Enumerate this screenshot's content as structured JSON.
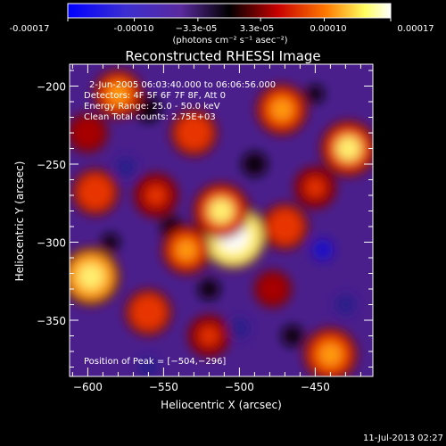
{
  "chart_data": {
    "type": "heatmap",
    "title": "Reconstructed RHESSI Image",
    "xlabel": "Heliocentric X (arcsec)",
    "ylabel": "Heliocentric Y (arcsec)",
    "xlim": [
      -612,
      -412
    ],
    "ylim": [
      -386,
      -186
    ],
    "x_ticks": [
      -600,
      -550,
      -500,
      -450
    ],
    "x_tick_labels": [
      "−600",
      "−550",
      "−500",
      "−450"
    ],
    "y_ticks": [
      -200,
      -250,
      -300,
      -350
    ],
    "y_tick_labels": [
      "−200",
      "−250",
      "−300",
      "−350"
    ],
    "colorbar": {
      "range": [
        -0.00017,
        0.00017
      ],
      "tick_labels": [
        "-0.00017",
        "-0.00010",
        "−3.3e-05",
        "3.3e-05",
        "0.00010",
        "0.00017"
      ],
      "units": "(photons cm⁻² s⁻¹ asec⁻²)",
      "colors": [
        "#0000ff",
        "#5a2a9e",
        "#000000",
        "#c80000",
        "#ff7a00",
        "#ffff80",
        "#ffffff"
      ]
    },
    "annotations": [
      "2-Jun-2005 06:03:40.000 to 06:06:56.000",
      "Detectors: 4F 5F 6F 7F 8F, Att 0",
      "Energy Range: 25.0 - 50.0 keV",
      "Clean     Total counts: 2.75E+03"
    ],
    "peak_label": "Position of Peak = [−504,−296]",
    "peak": [
      -504,
      -296
    ],
    "hotspots": [
      {
        "x": -504,
        "y": -296,
        "value": 0.00017
      },
      {
        "x": -512,
        "y": -280,
        "value": 0.00012
      },
      {
        "x": -580,
        "y": -205,
        "value": 9e-05
      },
      {
        "x": -530,
        "y": -230,
        "value": 8e-05
      },
      {
        "x": -472,
        "y": -215,
        "value": 0.0001
      },
      {
        "x": -428,
        "y": -240,
        "value": 0.00012
      },
      {
        "x": -598,
        "y": -322,
        "value": 0.00013
      },
      {
        "x": -595,
        "y": -268,
        "value": 8e-05
      },
      {
        "x": -555,
        "y": -270,
        "value": 7e-05
      },
      {
        "x": -535,
        "y": -305,
        "value": 9e-05
      },
      {
        "x": -560,
        "y": -345,
        "value": 8e-05
      },
      {
        "x": -520,
        "y": -360,
        "value": 6e-05
      },
      {
        "x": -470,
        "y": -290,
        "value": 8e-05
      },
      {
        "x": -478,
        "y": -330,
        "value": 4e-05
      },
      {
        "x": -440,
        "y": -372,
        "value": 0.00011
      },
      {
        "x": -450,
        "y": -265,
        "value": 6e-05
      },
      {
        "x": -600,
        "y": -230,
        "value": 5e-05
      }
    ],
    "lowspots": [
      {
        "x": -575,
        "y": -252,
        "value": -6e-05
      },
      {
        "x": -445,
        "y": -305,
        "value": -8e-05
      },
      {
        "x": -430,
        "y": -340,
        "value": -6e-05
      },
      {
        "x": -500,
        "y": -355,
        "value": -5e-05
      },
      {
        "x": -560,
        "y": -380,
        "value": -4e-05
      }
    ]
  },
  "footer": {
    "date": "11-Jul-2013 02:27"
  }
}
